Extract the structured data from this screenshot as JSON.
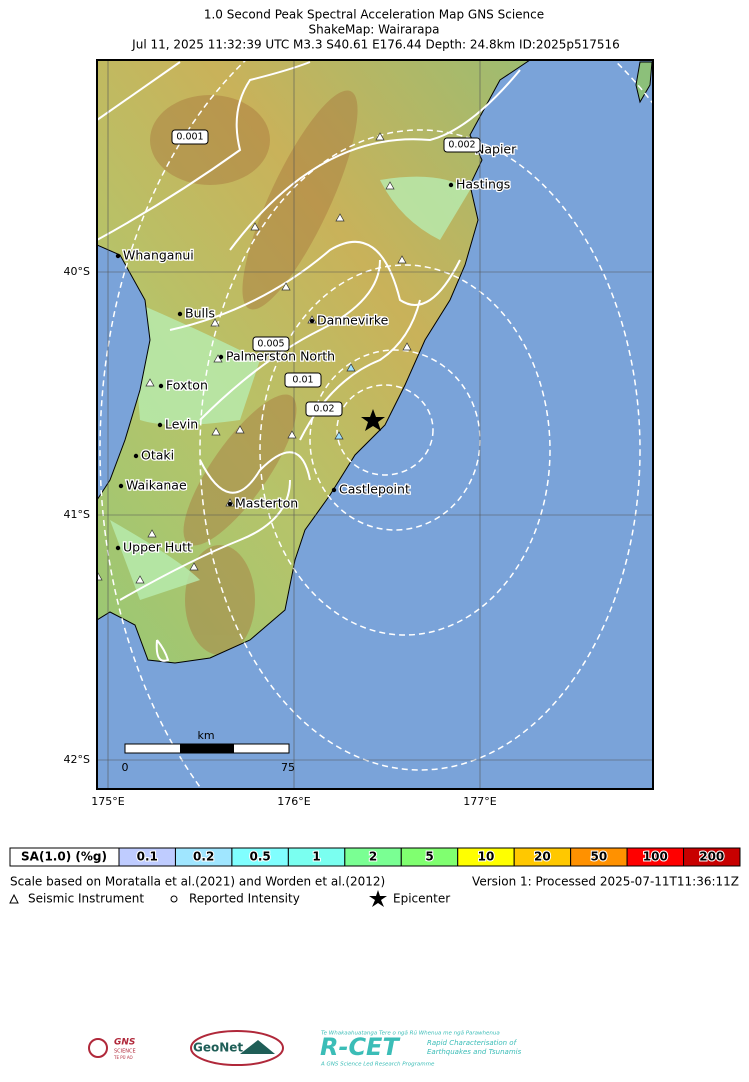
{
  "header": {
    "lines": [
      "1.0 Second Peak Spectral Acceleration Map GNS Science",
      "ShakeMap: Wairarapa",
      "Jul 11, 2025 11:32:39 UTC M3.3 S40.61 E176.44 Depth: 24.8km ID:2025p517516"
    ]
  },
  "map": {
    "lat_labels": [
      "40°S",
      "41°S",
      "42°S"
    ],
    "lon_labels": [
      "175°E",
      "176°E",
      "177°E"
    ],
    "towns": [
      "Whanganui",
      "Bulls",
      "Dannevirke",
      "Palmerston North",
      "Foxton",
      "Levin",
      "Otaki",
      "Waikanae",
      "Masterton",
      "Castlepoint",
      "Upper Hutt",
      "Hastings",
      "Napier"
    ],
    "contour_labels": [
      "0.001",
      "0.002",
      "0.005",
      "0.01",
      "0.02"
    ],
    "scale_bar": {
      "unit": "km",
      "start": "0",
      "end": "75"
    }
  },
  "scale": {
    "title": "SA(1.0) (%g)",
    "levels": [
      {
        "label": "0.1",
        "color": "#bfccff"
      },
      {
        "label": "0.2",
        "color": "#a0e6ff"
      },
      {
        "label": "0.5",
        "color": "#80ffff"
      },
      {
        "label": "1",
        "color": "#7afff0"
      },
      {
        "label": "2",
        "color": "#7aff93"
      },
      {
        "label": "5",
        "color": "#80ff70"
      },
      {
        "label": "10",
        "color": "#ffff00"
      },
      {
        "label": "20",
        "color": "#ffc800"
      },
      {
        "label": "50",
        "color": "#ff9100"
      },
      {
        "label": "100",
        "color": "#ff0000"
      },
      {
        "label": "200",
        "color": "#c80000"
      }
    ]
  },
  "notes": {
    "scale_basis": "Scale based on Moratalla et al.(2021) and Worden et al.(2012)",
    "version": "Version 1: Processed 2025-07-11T11:36:11Z",
    "legend": [
      "Seismic Instrument",
      "Reported Intensity",
      "Epicenter"
    ]
  },
  "logos": {
    "gns": "GNS",
    "gns_sub": "SCIENCE",
    "gns_maori": "TE PŪ AO",
    "geonet": "GeoNet",
    "rcet_top": "Te Whakaahuatanga Tere o ngā Rū Whenua me ngā Parawhenua",
    "rcet": "R-CET",
    "rcet_desc1": "Rapid Characterisation of",
    "rcet_desc2": "Earthquakes and Tsunamis",
    "rcet_foot": "A GNS Science Led Research Programme"
  }
}
